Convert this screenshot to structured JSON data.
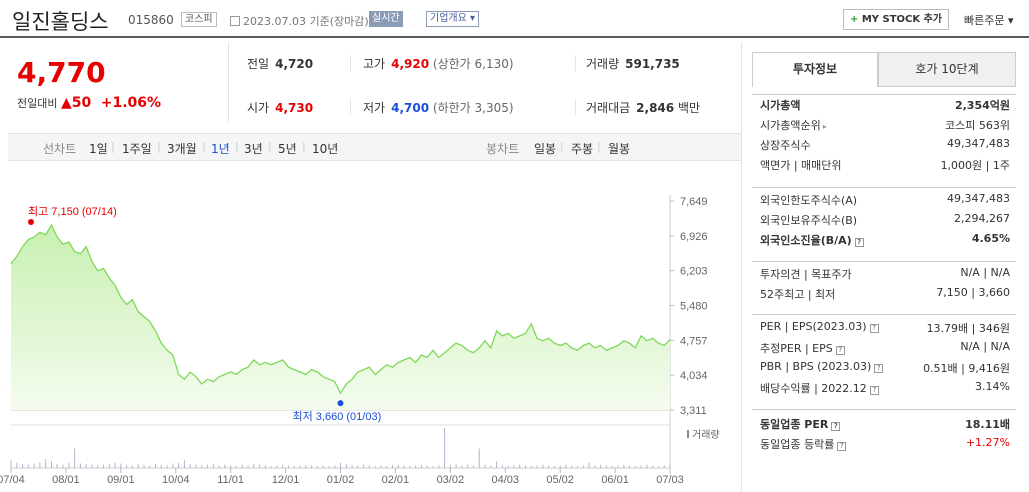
{
  "header": {
    "title": "일진홀딩스",
    "code": "015860",
    "market": "코스피",
    "date_text": "2023.07.03 기준(장마감)",
    "realtime_label": "실시간",
    "corp_info_label": "기업개요",
    "mystock_label": "MY STOCK 추가",
    "quick_order_label": "빠른주문"
  },
  "price": {
    "current": "4,770",
    "change_label": "전일대비",
    "change_value": "50",
    "change_pct": "+1.06%"
  },
  "summary": {
    "prev_label": "전일",
    "prev_value": "4,720",
    "high_label": "고가",
    "high_value": "4,920",
    "upper_limit": "(상한가 6,130)",
    "volume_label": "거래량",
    "volume_value": "591,735",
    "open_label": "시가",
    "open_value": "4,730",
    "low_label": "저가",
    "low_value": "4,700",
    "lower_limit": "(하한가 3,305)",
    "amount_label": "거래대금",
    "amount_value": "2,846",
    "amount_unit": "백만"
  },
  "period_bar": {
    "line_label": "선차트",
    "periods": [
      "1일",
      "1주일",
      "3개월",
      "1년",
      "3년",
      "5년",
      "10년"
    ],
    "selected": "1년",
    "candle_label": "봉차트",
    "candles": [
      "일봉",
      "주봉",
      "월봉"
    ]
  },
  "chart_data": {
    "type": "area",
    "y_ticks": [
      "7,649",
      "6,926",
      "6,203",
      "5,480",
      "4,757",
      "4,034",
      "3,311"
    ],
    "x_ticks": [
      "07/04",
      "08/01",
      "09/01",
      "10/04",
      "11/01",
      "12/01",
      "01/02",
      "02/01",
      "03/02",
      "04/03",
      "05/02",
      "06/01",
      "07/03"
    ],
    "ylim": [
      3311,
      7649
    ],
    "high_label": "최고 7,150 (07/14)",
    "low_label": "최저 3,660 (01/03)",
    "volume_label": "거래량",
    "series": [
      {
        "values": [
          6350,
          6500,
          6700,
          6850,
          6900,
          7000,
          6950,
          7150,
          6900,
          6750,
          6800,
          6600,
          6550,
          6700,
          6400,
          6200,
          6250,
          6050,
          5900,
          5650,
          5500,
          5600,
          5350,
          5250,
          5150,
          4950,
          4700,
          4550,
          4450,
          4050,
          3950,
          4100,
          4000,
          3850,
          3950,
          3900,
          4000,
          4050,
          4100,
          4050,
          4150,
          4200,
          4350,
          4250,
          4300,
          4250,
          4300,
          4350,
          4200,
          4150,
          4100,
          4050,
          4150,
          4100,
          4000,
          3950,
          3900,
          3660,
          3850,
          3950,
          4100,
          4150,
          4200,
          4050,
          4150,
          4250,
          4200,
          4300,
          4350,
          4400,
          4300,
          4450,
          4400,
          4550,
          4400,
          4500,
          4600,
          4700,
          4650,
          4550,
          4500,
          4600,
          4750,
          4600,
          4950,
          4850,
          4900,
          4800,
          4850,
          4900,
          5100,
          4800,
          4750,
          4800,
          4700,
          4650,
          4700,
          4600,
          4550,
          4650,
          4700,
          4600,
          4650,
          4550,
          4600,
          4650,
          4750,
          4700,
          4600,
          4850,
          4750,
          4800,
          4700,
          4650,
          4770
        ]
      }
    ],
    "volume": [
      12,
      8,
      6,
      5,
      7,
      9,
      14,
      10,
      6,
      5,
      8,
      30,
      7,
      6,
      5,
      4,
      5,
      6,
      8,
      7,
      5,
      4,
      6,
      5,
      4,
      6,
      5,
      4,
      7,
      8,
      12,
      6,
      5,
      4,
      5,
      6,
      4,
      5,
      4,
      3,
      5,
      4,
      6,
      5,
      4,
      3,
      4,
      5,
      4,
      3,
      4,
      5,
      4,
      3,
      4,
      3,
      4,
      8,
      6,
      5,
      4,
      5,
      4,
      3,
      4,
      3,
      4,
      5,
      4,
      3,
      4,
      5,
      4,
      3,
      4,
      62,
      5,
      6,
      4,
      5,
      4,
      30,
      5,
      4,
      10,
      4,
      3,
      4,
      5,
      4,
      3,
      4,
      5,
      4,
      3,
      4,
      5,
      4,
      3,
      4,
      8,
      4,
      5,
      4,
      3,
      4,
      5,
      4,
      3,
      4,
      5,
      4,
      3,
      4,
      5
    ]
  },
  "invest_panel": {
    "tab_active": "투자정보",
    "tab_other": "호가 10단계",
    "group1": [
      {
        "k": "시가총액",
        "v": "2,354억원",
        "bold": true
      },
      {
        "k": "시가총액순위",
        "v": "코스피 563위",
        "arrow": true
      },
      {
        "k": "상장주식수",
        "v": "49,347,483"
      },
      {
        "k": "액면가 | 매매단위",
        "v": "1,000원 | 1주"
      }
    ],
    "group2": [
      {
        "k": "외국인한도주식수(A)",
        "v": "49,347,483"
      },
      {
        "k": "외국인보유주식수(B)",
        "v": "2,294,267"
      },
      {
        "k": "외국인소진율(B/A)",
        "v": "4.65%",
        "bold": true,
        "q": true
      }
    ],
    "group3": [
      {
        "k": "투자의견 | 목표주가",
        "v": "N/A | N/A"
      },
      {
        "k": "52주최고 | 최저",
        "v": "7,150 | 3,660"
      }
    ],
    "group4": [
      {
        "k": "PER | EPS(2023.03)",
        "v": "13.79배 | 346원",
        "q": true
      },
      {
        "k": "추정PER | EPS",
        "v": "N/A | N/A",
        "q": true
      },
      {
        "k": "PBR | BPS (2023.03)",
        "v": "0.51배 | 9,416원",
        "q": true
      },
      {
        "k": "배당수익률 | 2022.12",
        "v": "3.14%",
        "q": true
      }
    ],
    "group5": [
      {
        "k": "동일업종 PER",
        "v": "18.11배",
        "bold": true,
        "q": true
      },
      {
        "k": "동일업종 등락률",
        "v": "+1.27%",
        "red": true,
        "q": true
      }
    ],
    "colors": {
      "up": "#e60000",
      "down": "#1a4fd6",
      "area": "#c8f0b0",
      "line": "#7fd85a"
    }
  }
}
